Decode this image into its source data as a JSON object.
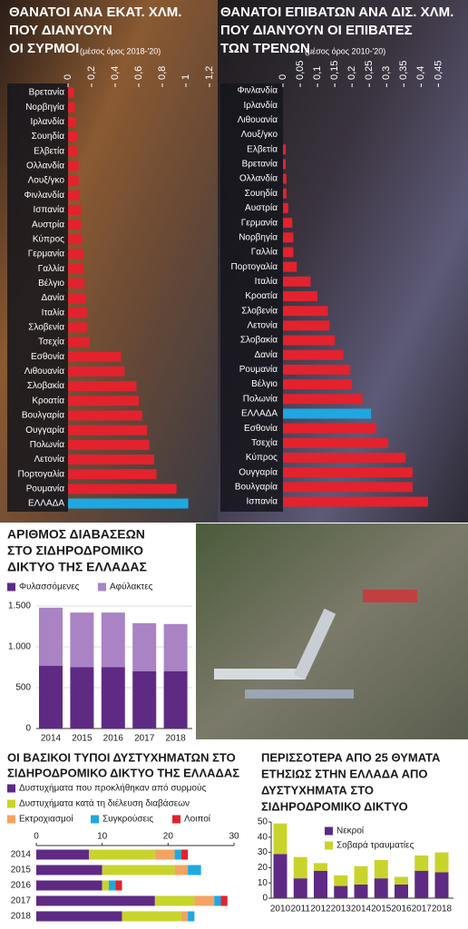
{
  "chart_data": [
    {
      "type": "barh",
      "title": [
        "ΘΑΝΑΤΟΙ ΑΝΑ ΕΚΑΤ. ΧΛΜ.",
        "ΠΟΥ ΔΙΑΝΥΟΥΝ",
        "ΟΙ ΣΥΡΜΟΙ"
      ],
      "subtitle": "(μέσος όρος 2018-'20)",
      "categories": [
        "Βρετανία",
        "Νορβηγία",
        "Ιρλανδία",
        "Σουηδία",
        "Ελβετία",
        "Ολλανδία",
        "Λουξ/γκο",
        "Φινλανδία",
        "Ισπανία",
        "Αυστρία",
        "Κύπρος",
        "Γερμανία",
        "Γαλλία",
        "Βέλγιο",
        "Δανία",
        "Ιταλία",
        "Σλοβενία",
        "Τσεχία",
        "Εσθονία",
        "Λιθουανία",
        "Σλοβακία",
        "Κροατία",
        "Βουλγαρία",
        "Ουγγαρία",
        "Πολωνία",
        "Λετονία",
        "Πορτογαλία",
        "Ρουμανία",
        "ΕΛΛΑΔΑ"
      ],
      "values": [
        0.05,
        0.06,
        0.07,
        0.08,
        0.08,
        0.09,
        0.09,
        0.1,
        0.11,
        0.11,
        0.12,
        0.13,
        0.13,
        0.14,
        0.15,
        0.16,
        0.16,
        0.18,
        0.45,
        0.48,
        0.58,
        0.6,
        0.63,
        0.67,
        0.69,
        0.73,
        0.75,
        0.92,
        1.02
      ],
      "colors": [
        "#e3222e",
        "#e3222e",
        "#e3222e",
        "#e3222e",
        "#e3222e",
        "#e3222e",
        "#e3222e",
        "#e3222e",
        "#e3222e",
        "#e3222e",
        "#e3222e",
        "#e3222e",
        "#e3222e",
        "#e3222e",
        "#e3222e",
        "#e3222e",
        "#e3222e",
        "#e3222e",
        "#e3222e",
        "#e3222e",
        "#e3222e",
        "#e3222e",
        "#e3222e",
        "#e3222e",
        "#e3222e",
        "#e3222e",
        "#e3222e",
        "#e3222e",
        "#1ea7e1"
      ],
      "xlim": [
        0,
        1.2
      ],
      "xticks": [
        0,
        {
          "value": 0.2,
          "label": "0,2"
        },
        {
          "value": 0.4,
          "label": "0,4"
        },
        {
          "value": 0.6,
          "label": "0,6"
        },
        {
          "value": 0.8,
          "label": "0,8"
        },
        1,
        {
          "value": 1.2,
          "label": "1,2"
        }
      ]
    },
    {
      "type": "barh",
      "title": [
        "ΘΑΝΑΤΟΙ ΕΠΙΒΑΤΩΝ ΑΝΑ ΔΙΣ. ΧΛΜ.",
        "ΠΟΥ ΔΙΑΝΥΟΥΝ ΟΙ ΕΠΙΒΑΤΕΣ",
        "ΤΩΝ ΤΡΕΝΩΝ"
      ],
      "subtitle": "(μέσος όρος 2010-'20)",
      "categories": [
        "Φινλανδία",
        "Ιρλανδία",
        "Λιθουανία",
        "Λουξ/γκο",
        "Ελβετία",
        "Βρετανία",
        "Ολλανδία",
        "Σουηδία",
        "Αυστρία",
        "Γερμανία",
        "Νορβηγία",
        "Γαλλία",
        "Πορτογαλία",
        "Ιταλία",
        "Κροατία",
        "Σλοβενία",
        "Λετονία",
        "Σλοβακία",
        "Δανία",
        "Ρουμανία",
        "Βέλγιο",
        "Πολωνία",
        "ΕΛΛΑΔΑ",
        "Εσθονία",
        "Τσεχία",
        "Κύπρος",
        "Ουγγαρία",
        "Βουλγαρία",
        "Ισπανία"
      ],
      "values": [
        0,
        0,
        0,
        0,
        0.008,
        0.008,
        0.01,
        0.01,
        0.015,
        0.027,
        0.03,
        0.03,
        0.04,
        0.08,
        0.1,
        0.13,
        0.135,
        0.15,
        0.175,
        0.195,
        0.2,
        0.23,
        0.255,
        0.27,
        0.305,
        0.355,
        0.375,
        0.375,
        0.42
      ],
      "colors": [
        "#e3222e",
        "#e3222e",
        "#e3222e",
        "#e3222e",
        "#e3222e",
        "#e3222e",
        "#e3222e",
        "#e3222e",
        "#e3222e",
        "#e3222e",
        "#e3222e",
        "#e3222e",
        "#e3222e",
        "#e3222e",
        "#e3222e",
        "#e3222e",
        "#e3222e",
        "#e3222e",
        "#e3222e",
        "#e3222e",
        "#e3222e",
        "#e3222e",
        "#1ea7e1",
        "#e3222e",
        "#e3222e",
        "#e3222e",
        "#e3222e",
        "#e3222e",
        "#e3222e"
      ],
      "xlim": [
        0,
        0.47
      ],
      "xticks": [
        0,
        {
          "value": 0.05,
          "label": "0,05"
        },
        {
          "value": 0.1,
          "label": "0,1"
        },
        {
          "value": 0.15,
          "label": "0,15"
        },
        {
          "value": 0.2,
          "label": "0,2"
        },
        {
          "value": 0.25,
          "label": "0,25"
        },
        {
          "value": 0.3,
          "label": "0,3"
        },
        {
          "value": 0.35,
          "label": "0,35"
        },
        {
          "value": 0.4,
          "label": "0,4"
        },
        {
          "value": 0.45,
          "label": "0,45"
        }
      ]
    },
    {
      "type": "stacked_bar",
      "title": [
        "ΑΡΙΘΜΟΣ ΔΙΑΒΑΣΕΩΝ",
        "ΣΤΟ ΣΙΔΗΡΟΔΡΟΜΙΚΟ",
        "ΔΙΚΤΥΟ ΤΗΣ ΕΛΛΑΔΑΣ"
      ],
      "categories": [
        "2014",
        "2015",
        "2016",
        "2017",
        "2018"
      ],
      "series": [
        {
          "name": "Φυλασσόμενες",
          "color": "#5e2a84",
          "values": [
            770,
            750,
            750,
            700,
            700
          ]
        },
        {
          "name": "Αφύλακτες",
          "color": "#a983c4",
          "values": [
            710,
            670,
            670,
            590,
            580
          ]
        }
      ],
      "ylim": [
        0,
        1500
      ],
      "yticks": [
        0,
        500,
        {
          "value": 1000,
          "label": "1.000"
        },
        {
          "value": 1500,
          "label": "1.500"
        }
      ],
      "grid": true
    },
    {
      "type": "stacked_barh",
      "title": [
        "ΟΙ ΒΑΣΙΚΟΙ ΤΥΠΟΙ ΔΥΣΤΥΧΗΜΑΤΩΝ ΣΤΟ",
        "ΣΙΔΗΡΟΔΡΟΜΙΚΟ ΔΙΚΤΥΟ ΤΗΣ ΕΛΛΑΔΑΣ"
      ],
      "categories": [
        "2014",
        "2015",
        "2016",
        "2017",
        "2018"
      ],
      "series": [
        {
          "name": "Δυστυχήματα που προκλήθηκαν από συρμούς",
          "color": "#5e2a84",
          "values": [
            8,
            10,
            10,
            18,
            13
          ]
        },
        {
          "name": "Δυστυχήματα κατά τη διέλευση διαβάσεων",
          "color": "#c8d42c",
          "values": [
            10,
            11,
            1,
            6,
            9
          ]
        },
        {
          "name": "Εκτροχιασμοί",
          "color": "#f4a361",
          "values": [
            3,
            2,
            0,
            3,
            1
          ]
        },
        {
          "name": "Συγκρούσεις",
          "color": "#1fa9df",
          "values": [
            1,
            2,
            1,
            1,
            1
          ]
        },
        {
          "name": "Λοιποί",
          "color": "#e3222e",
          "values": [
            1,
            0,
            1,
            1,
            0
          ]
        }
      ],
      "xlim": [
        0,
        30
      ],
      "xticks": [
        0,
        10,
        20,
        30
      ]
    },
    {
      "type": "stacked_bar",
      "title": [
        "ΠΕΡΙΣΣΟΤΕΡΑ ΑΠΟ 25 ΘΥΜΑΤΑ",
        "ΕΤΗΣΙΩΣ ΣΤΗΝ ΕΛΛΑΔΑ ΑΠΟ",
        "ΔΥΣΤΥΧΗΜΑΤΑ ΣΤΟ",
        "ΣΙΔΗΡΟΔΡΟΜΙΚΟ ΔΙΚΤΥΟ"
      ],
      "categories": [
        "2010",
        "2011",
        "2012",
        "2013",
        "2014",
        "2015",
        "2016",
        "2017",
        "2018"
      ],
      "series": [
        {
          "name": "Νεκροί",
          "color": "#5e2a84",
          "values": [
            29,
            13,
            18,
            8,
            9,
            13,
            9,
            18,
            17
          ]
        },
        {
          "name": "Σοβαρά τραυματίες",
          "color": "#c8d42c",
          "values": [
            20,
            14,
            5,
            7,
            12,
            12,
            5,
            10,
            13
          ]
        }
      ],
      "ylim": [
        0,
        50
      ],
      "yticks": [
        0,
        10,
        20,
        30,
        40,
        50
      ],
      "grid": false
    }
  ]
}
